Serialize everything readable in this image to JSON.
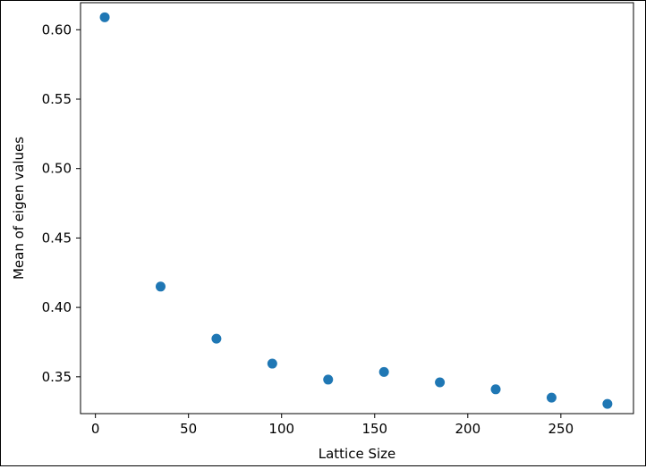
{
  "chart_data": {
    "type": "scatter",
    "title": "",
    "xlabel": "Lattice Size",
    "ylabel": "Mean of eigen values",
    "xlim": [
      -8,
      289
    ],
    "ylim": [
      0.3235,
      0.6195
    ],
    "xticks": [
      0,
      50,
      100,
      150,
      200,
      250
    ],
    "xtick_labels": [
      "0",
      "50",
      "100",
      "150",
      "200",
      "250"
    ],
    "yticks": [
      0.35,
      0.4,
      0.45,
      0.5,
      0.55,
      0.6
    ],
    "ytick_labels": [
      "0.35",
      "0.40",
      "0.45",
      "0.50",
      "0.55",
      "0.60"
    ],
    "grid": false,
    "series": [
      {
        "color": "#1f77b4",
        "x": [
          5,
          35,
          65,
          95,
          125,
          155,
          185,
          215,
          245,
          275
        ],
        "y": [
          0.609,
          0.415,
          0.3775,
          0.3595,
          0.348,
          0.3535,
          0.346,
          0.341,
          0.335,
          0.3305
        ]
      }
    ]
  }
}
